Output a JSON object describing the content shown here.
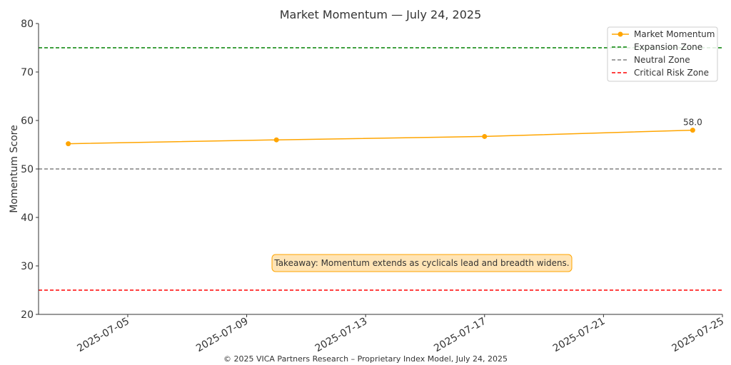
{
  "chart_data": {
    "type": "line",
    "title": "Market Momentum — July 24, 2025",
    "ylabel": "Momentum Score",
    "xlabel": "",
    "ylim": [
      20,
      80
    ],
    "yticks": [
      20,
      30,
      40,
      50,
      60,
      70,
      80
    ],
    "xlim": [
      "2025-07-02",
      "2025-07-25"
    ],
    "xticks": [
      "2025-07-05",
      "2025-07-09",
      "2025-07-13",
      "2025-07-17",
      "2025-07-21",
      "2025-07-25"
    ],
    "series": [
      {
        "name": "Market Momentum",
        "color": "#FFA500",
        "x": [
          "2025-07-03",
          "2025-07-10",
          "2025-07-17",
          "2025-07-24"
        ],
        "values": [
          55.2,
          56.0,
          56.7,
          58.0
        ]
      }
    ],
    "reference_lines": [
      {
        "name": "Expansion Zone",
        "y": 75,
        "color": "#008000"
      },
      {
        "name": "Neutral Zone",
        "y": 50,
        "color": "#808080"
      },
      {
        "name": "Critical Risk Zone",
        "y": 25,
        "color": "#FF0000"
      }
    ],
    "data_labels": [
      {
        "x": "2025-07-24",
        "text": "58.0"
      }
    ],
    "annotation": "Takeaway: Momentum extends as cyclicals lead and breadth widens.",
    "legend_position": "top-right",
    "grid": false
  },
  "footer": "© 2025 VICA Partners Research – Proprietary Index Model, July 24, 2025"
}
